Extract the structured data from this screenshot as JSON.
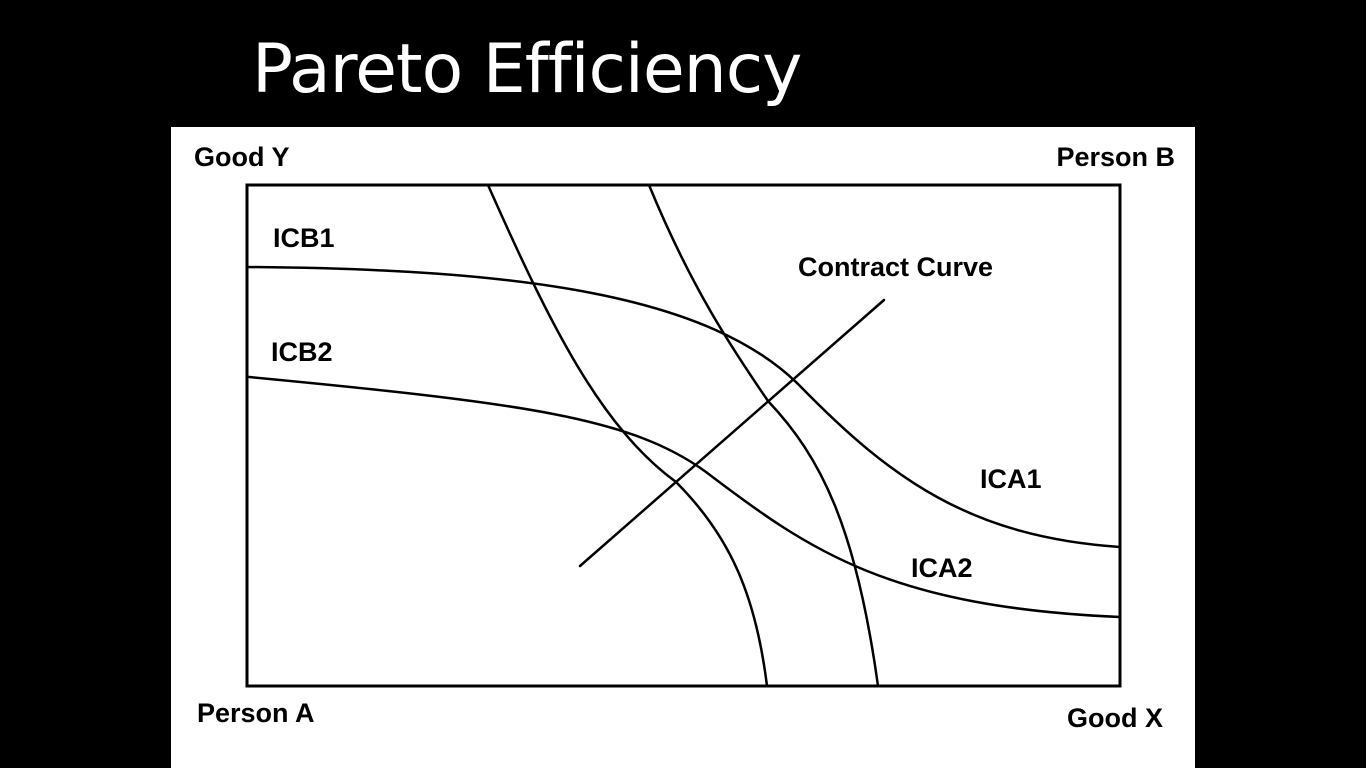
{
  "slide": {
    "title": "Pareto Efficiency"
  },
  "diagram": {
    "corner_labels": {
      "top_left": "Good Y",
      "top_right": "Person B",
      "bottom_left": "Person A",
      "bottom_right": "Good X"
    },
    "curve_labels": {
      "icb1": "ICB1",
      "icb2": "ICB2",
      "ica1": "ICA1",
      "ica2": "ICA2",
      "contract_curve": "Contract Curve"
    },
    "colors": {
      "background": "#000000",
      "title": "#ffffff",
      "panel": "#ffffff",
      "ink": "#000000"
    }
  }
}
